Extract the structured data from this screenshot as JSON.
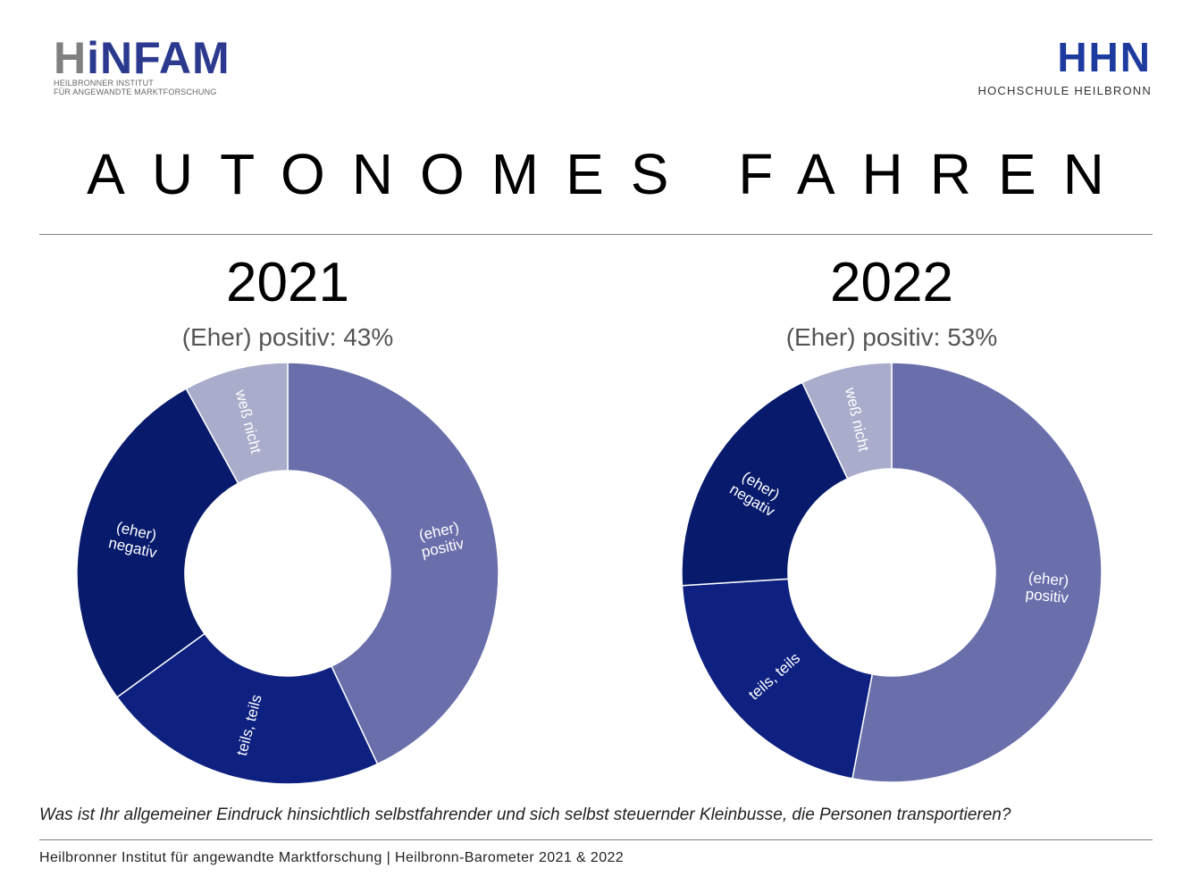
{
  "header": {
    "left_logo": {
      "mark_prefix": "H",
      "mark_rest": "iNFAM",
      "line1": "HEILBRONNER INSTITUT",
      "line2": "FÜR ANGEWANDTE MARKTFORSCHUNG"
    },
    "right_logo": {
      "mark": "HHN",
      "subtitle": "HOCHSCHULE HEILBRONN"
    }
  },
  "title": "AUTONOMES FAHREN",
  "colors": {
    "positiv": "#6a6fab",
    "teils": "#0e2180",
    "negativ": "#071a6c",
    "weiss": "#a9acca",
    "divider": "#808080"
  },
  "chart_data": [
    {
      "type": "pie",
      "variant": "donut",
      "title": "2021",
      "subtitle": "(Eher) positiv: 43%",
      "slices": [
        {
          "label": "(eher) positiv",
          "value": 43
        },
        {
          "label": "teils, teils",
          "value": 22
        },
        {
          "label": "(eher) negativ",
          "value": 27
        },
        {
          "label": "weß nicht",
          "value": 8
        }
      ]
    },
    {
      "type": "pie",
      "variant": "donut",
      "title": "2022",
      "subtitle": "(Eher) positiv: 53%",
      "slices": [
        {
          "label": "(eher) positiv",
          "value": 53
        },
        {
          "label": "teils, teils",
          "value": 21
        },
        {
          "label": "(eher) negativ",
          "value": 19
        },
        {
          "label": "weß nicht",
          "value": 7
        }
      ]
    }
  ],
  "question": "Was ist Ihr allgemeiner Eindruck hinsichtlich selbstfahrender und sich selbst steuernder Kleinbusse, die Personen transportieren?",
  "footer": "Heilbronner Institut für angewandte Marktforschung | Heilbronn-Barometer 2021 & 2022"
}
